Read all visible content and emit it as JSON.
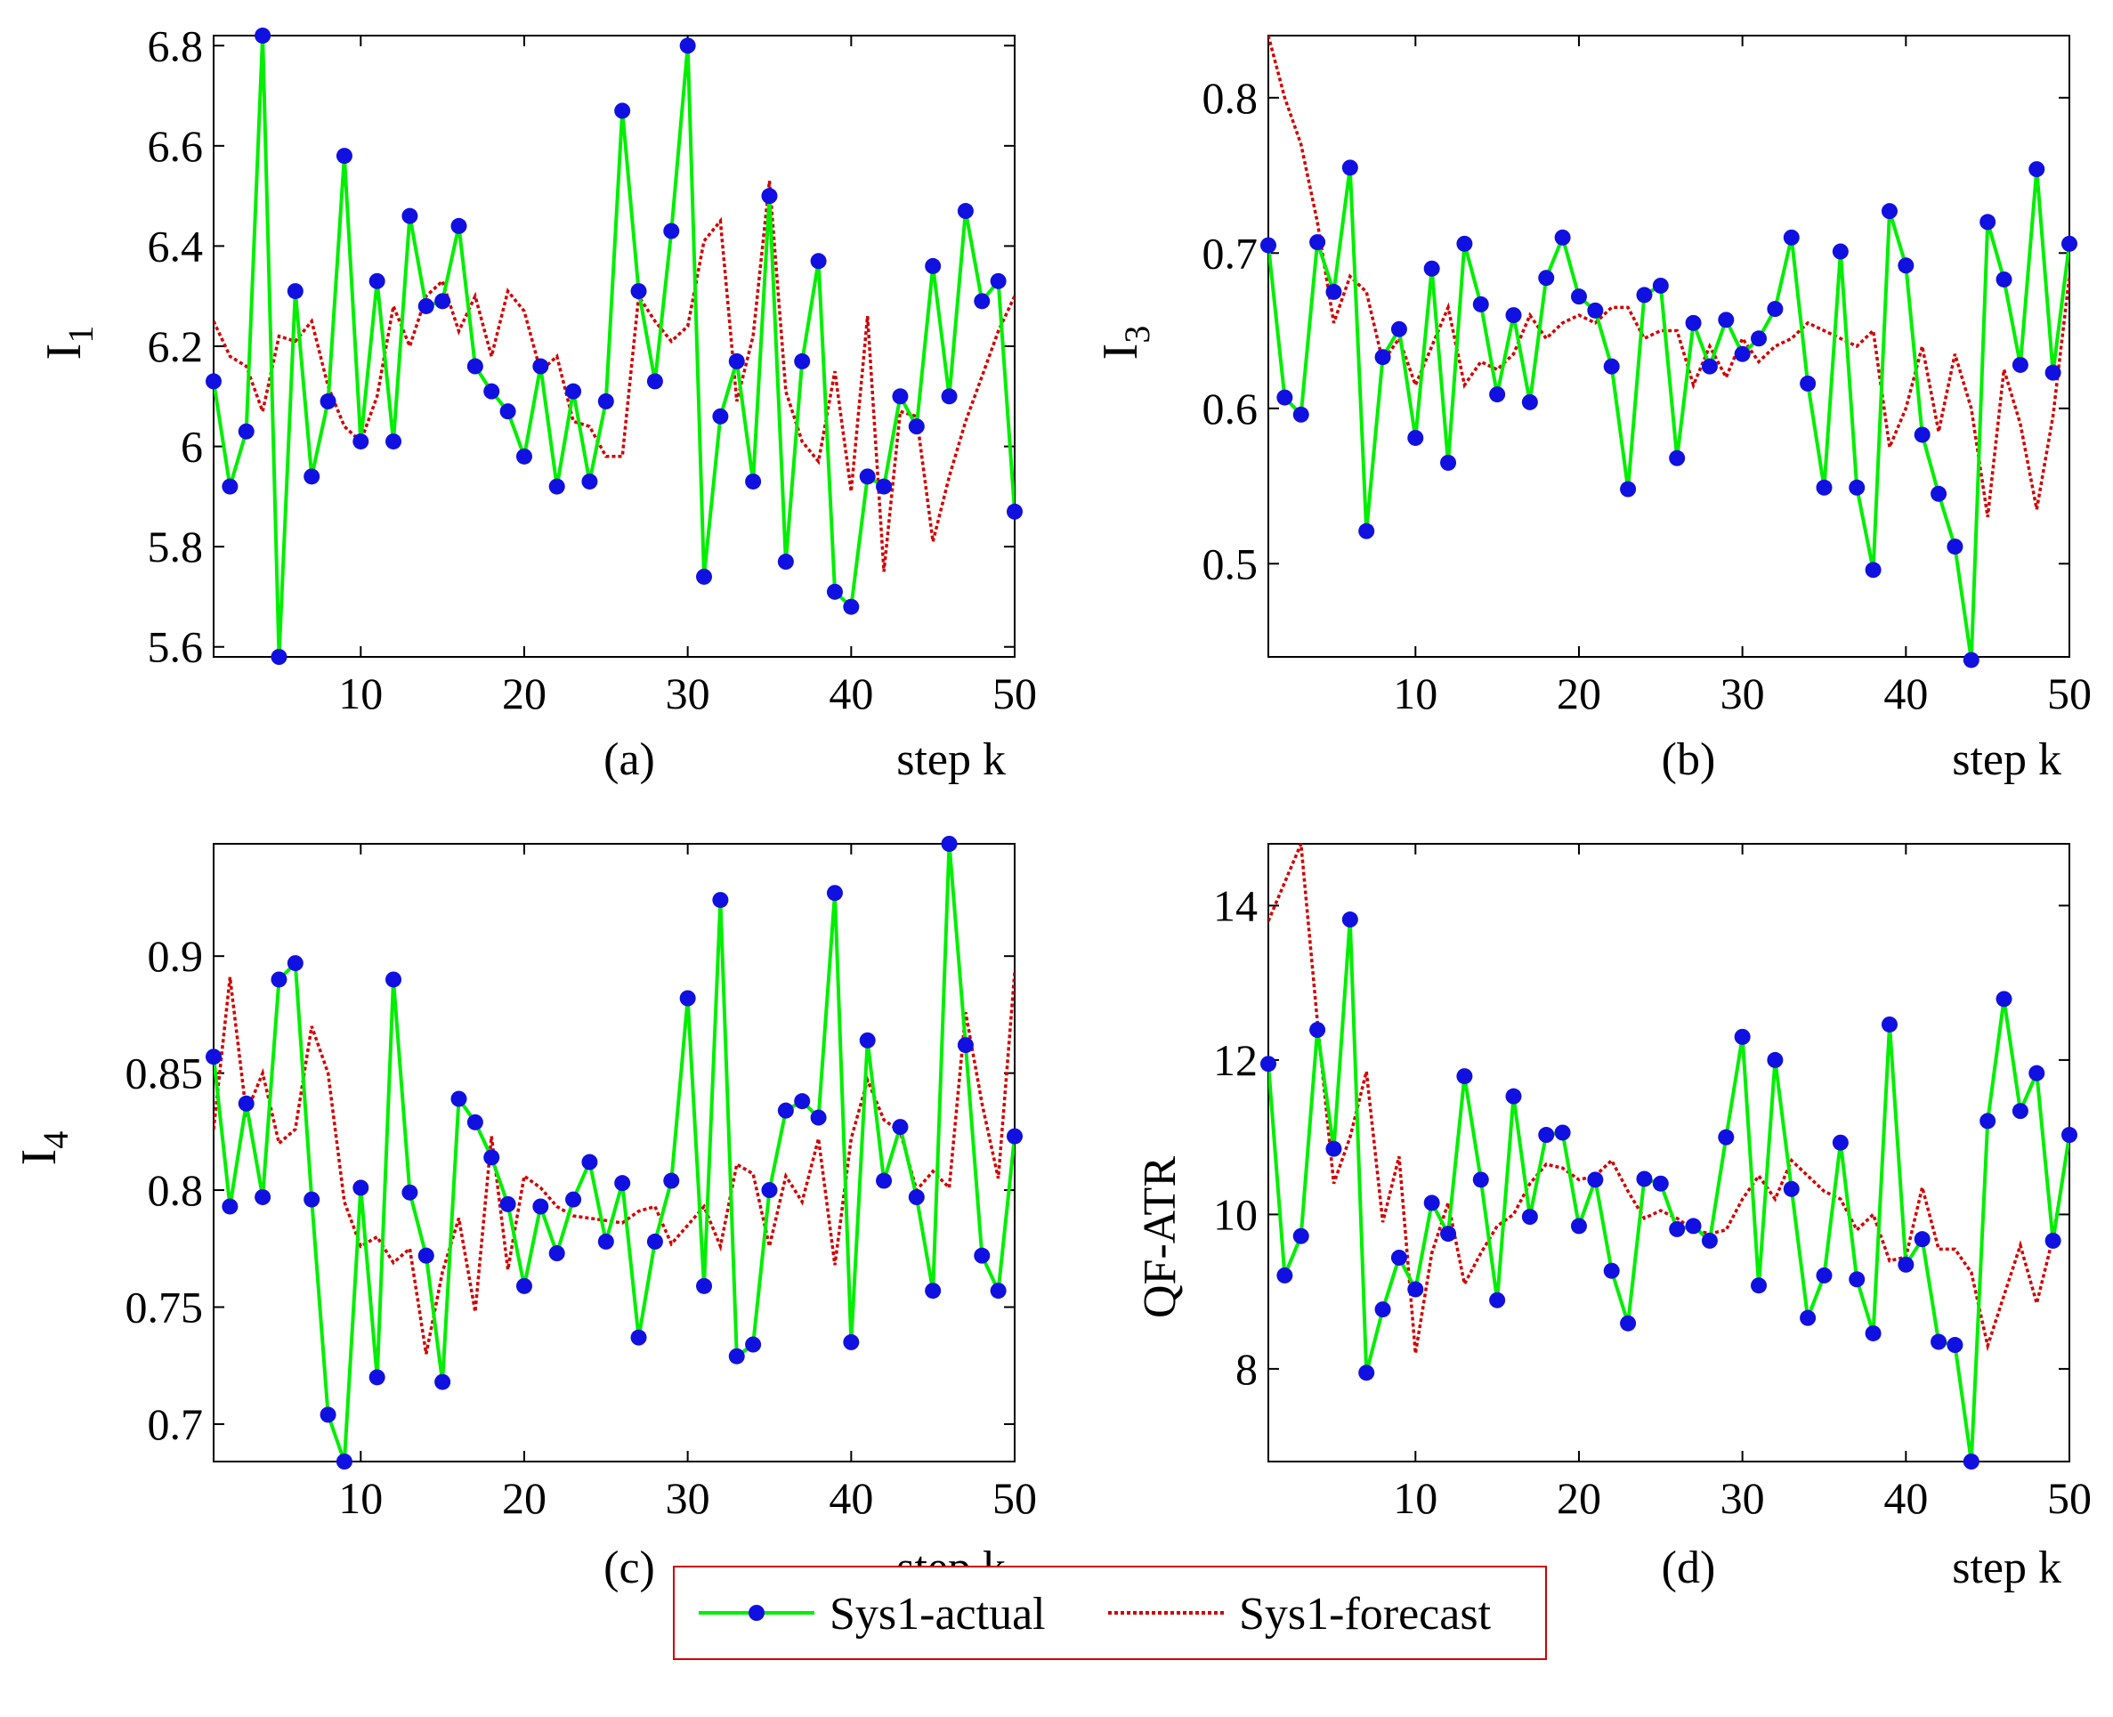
{
  "figure": {
    "legend": {
      "actual_label": "Sys1-actual",
      "forecast_label": "Sys1-forecast"
    },
    "colors": {
      "actual_line": "#00ee00",
      "actual_marker": "#1010e0",
      "forecast_line": "#d00000",
      "legend_border": "#d00000",
      "axes": "#000000"
    }
  },
  "chart_data": [
    {
      "id": "a",
      "type": "line",
      "panel_label": "(a)",
      "xlabel": "step k",
      "ylabel": "I",
      "ylabel_sub": "1",
      "xlim": [
        1,
        50
      ],
      "ylim": [
        5.58,
        6.82
      ],
      "xticks": [
        10,
        20,
        30,
        40,
        50
      ],
      "yticks": [
        5.6,
        5.8,
        6,
        6.2,
        6.4,
        6.6,
        6.8
      ],
      "ytick_labels": [
        "5.6",
        "5.8",
        "6",
        "6.2",
        "6.4",
        "6.6",
        "6.8"
      ],
      "series": [
        {
          "name": "Sys1-actual",
          "values": [
            6.13,
            5.92,
            6.03,
            6.82,
            5.58,
            6.31,
            5.94,
            6.09,
            6.58,
            6.01,
            6.33,
            6.01,
            6.46,
            6.28,
            6.29,
            6.44,
            6.16,
            6.11,
            6.07,
            5.98,
            6.16,
            5.92,
            6.11,
            5.93,
            6.09,
            6.67,
            6.31,
            6.13,
            6.43,
            6.8,
            5.74,
            6.06,
            6.17,
            5.93,
            6.5,
            5.77,
            6.17,
            6.37,
            5.71,
            5.68,
            5.94,
            5.92,
            6.1,
            6.04,
            6.36,
            6.1,
            6.47,
            6.29,
            6.33,
            5.87
          ]
        },
        {
          "name": "Sys1-forecast",
          "values": [
            6.25,
            6.18,
            6.16,
            6.07,
            6.22,
            6.21,
            6.25,
            6.12,
            6.04,
            6.01,
            6.1,
            6.28,
            6.2,
            6.3,
            6.33,
            6.23,
            6.3,
            6.18,
            6.31,
            6.27,
            6.15,
            6.18,
            6.05,
            6.04,
            5.98,
            5.98,
            6.3,
            6.25,
            6.21,
            6.24,
            6.41,
            6.45,
            6.09,
            6.22,
            6.53,
            6.11,
            6.01,
            5.97,
            6.15,
            5.91,
            6.26,
            5.75,
            6.07,
            6.06,
            5.81,
            5.94,
            6.05,
            6.14,
            6.23,
            6.3
          ]
        }
      ]
    },
    {
      "id": "b",
      "type": "line",
      "panel_label": "(b)",
      "xlabel": "step k",
      "ylabel": "I",
      "ylabel_sub": "3",
      "xlim": [
        1,
        50
      ],
      "ylim": [
        0.44,
        0.84
      ],
      "xticks": [
        10,
        20,
        30,
        40,
        50
      ],
      "yticks": [
        0.5,
        0.6,
        0.7,
        0.8
      ],
      "ytick_labels": [
        "0.5",
        "0.6",
        "0.7",
        "0.8"
      ],
      "series": [
        {
          "name": "Sys1-actual",
          "values": [
            0.705,
            0.607,
            0.596,
            0.707,
            0.675,
            0.755,
            0.521,
            0.633,
            0.651,
            0.581,
            0.69,
            0.565,
            0.706,
            0.667,
            0.609,
            0.66,
            0.604,
            0.684,
            0.71,
            0.672,
            0.663,
            0.627,
            0.548,
            0.673,
            0.679,
            0.568,
            0.655,
            0.627,
            0.657,
            0.635,
            0.645,
            0.664,
            0.71,
            0.616,
            0.549,
            0.701,
            0.549,
            0.496,
            0.727,
            0.692,
            0.583,
            0.545,
            0.511,
            0.438,
            0.72,
            0.683,
            0.628,
            0.754,
            0.623,
            0.706
          ]
        },
        {
          "name": "Sys1-forecast",
          "values": [
            0.84,
            0.8,
            0.77,
            0.72,
            0.655,
            0.685,
            0.675,
            0.63,
            0.645,
            0.615,
            0.64,
            0.665,
            0.615,
            0.63,
            0.625,
            0.635,
            0.66,
            0.645,
            0.655,
            0.66,
            0.655,
            0.665,
            0.665,
            0.645,
            0.65,
            0.65,
            0.615,
            0.64,
            0.62,
            0.645,
            0.63,
            0.64,
            0.645,
            0.655,
            0.65,
            0.645,
            0.64,
            0.65,
            0.575,
            0.6,
            0.64,
            0.585,
            0.635,
            0.6,
            0.53,
            0.625,
            0.59,
            0.535,
            0.595,
            0.685
          ]
        }
      ]
    },
    {
      "id": "c",
      "type": "line",
      "panel_label": "(c)",
      "xlabel": "step k",
      "ylabel": "I",
      "ylabel_sub": "4",
      "xlim": [
        1,
        50
      ],
      "ylim": [
        0.684,
        0.948
      ],
      "xticks": [
        10,
        20,
        30,
        40,
        50
      ],
      "yticks": [
        0.7,
        0.75,
        0.8,
        0.85,
        0.9
      ],
      "ytick_labels": [
        "0.7",
        "0.75",
        "0.8",
        "0.85",
        "0.9"
      ],
      "series": [
        {
          "name": "Sys1-actual",
          "values": [
            0.857,
            0.793,
            0.837,
            0.797,
            0.89,
            0.897,
            0.796,
            0.704,
            0.684,
            0.801,
            0.72,
            0.89,
            0.799,
            0.772,
            0.718,
            0.839,
            0.829,
            0.814,
            0.794,
            0.759,
            0.793,
            0.773,
            0.796,
            0.812,
            0.778,
            0.803,
            0.737,
            0.778,
            0.804,
            0.882,
            0.759,
            0.924,
            0.729,
            0.734,
            0.8,
            0.834,
            0.838,
            0.831,
            0.927,
            0.735,
            0.864,
            0.804,
            0.827,
            0.797,
            0.757,
            0.948,
            0.862,
            0.772,
            0.757,
            0.823
          ]
        },
        {
          "name": "Sys1-forecast",
          "values": [
            0.826,
            0.891,
            0.833,
            0.85,
            0.82,
            0.826,
            0.87,
            0.85,
            0.795,
            0.776,
            0.78,
            0.769,
            0.775,
            0.73,
            0.765,
            0.788,
            0.748,
            0.823,
            0.766,
            0.806,
            0.801,
            0.793,
            0.789,
            0.788,
            0.787,
            0.786,
            0.791,
            0.793,
            0.777,
            0.785,
            0.793,
            0.776,
            0.811,
            0.807,
            0.776,
            0.806,
            0.795,
            0.822,
            0.768,
            0.822,
            0.847,
            0.83,
            0.825,
            0.8,
            0.808,
            0.801,
            0.876,
            0.837,
            0.805,
            0.893
          ]
        }
      ]
    },
    {
      "id": "d",
      "type": "line",
      "panel_label": "(d)",
      "xlabel": "step k",
      "ylabel": "QF-ATR",
      "ylabel_sub": "",
      "xlim": [
        1,
        50
      ],
      "ylim": [
        6.8,
        14.8
      ],
      "xticks": [
        10,
        20,
        30,
        40,
        50
      ],
      "yticks": [
        8,
        10,
        12,
        14
      ],
      "ytick_labels": [
        "8",
        "10",
        "12",
        "14"
      ],
      "series": [
        {
          "name": "Sys1-actual",
          "values": [
            11.95,
            9.21,
            9.72,
            12.39,
            10.85,
            13.82,
            7.95,
            8.77,
            9.44,
            9.03,
            10.15,
            9.75,
            11.79,
            10.45,
            8.89,
            11.53,
            9.97,
            11.03,
            11.06,
            9.85,
            10.45,
            9.27,
            8.59,
            10.46,
            10.4,
            9.81,
            9.85,
            9.66,
            11.0,
            12.3,
            9.08,
            12.0,
            10.33,
            8.66,
            9.21,
            10.93,
            9.16,
            8.46,
            12.46,
            9.35,
            9.68,
            8.35,
            8.31,
            6.8,
            11.21,
            12.79,
            11.34,
            11.83,
            9.66,
            11.03
          ]
        },
        {
          "name": "Sys1-forecast",
          "values": [
            13.8,
            14.3,
            14.8,
            12.5,
            10.4,
            11.0,
            11.85,
            9.9,
            10.75,
            8.2,
            9.5,
            10.15,
            9.1,
            9.5,
            9.85,
            10.0,
            10.4,
            10.65,
            10.6,
            10.45,
            10.5,
            10.7,
            10.3,
            9.95,
            10.05,
            9.95,
            9.8,
            9.75,
            9.8,
            10.2,
            10.5,
            10.2,
            10.7,
            10.5,
            10.3,
            10.2,
            9.8,
            10.0,
            9.4,
            9.45,
            10.35,
            9.55,
            9.55,
            9.25,
            8.3,
            8.95,
            9.6,
            8.85,
            9.7,
            11.0
          ]
        }
      ]
    }
  ]
}
